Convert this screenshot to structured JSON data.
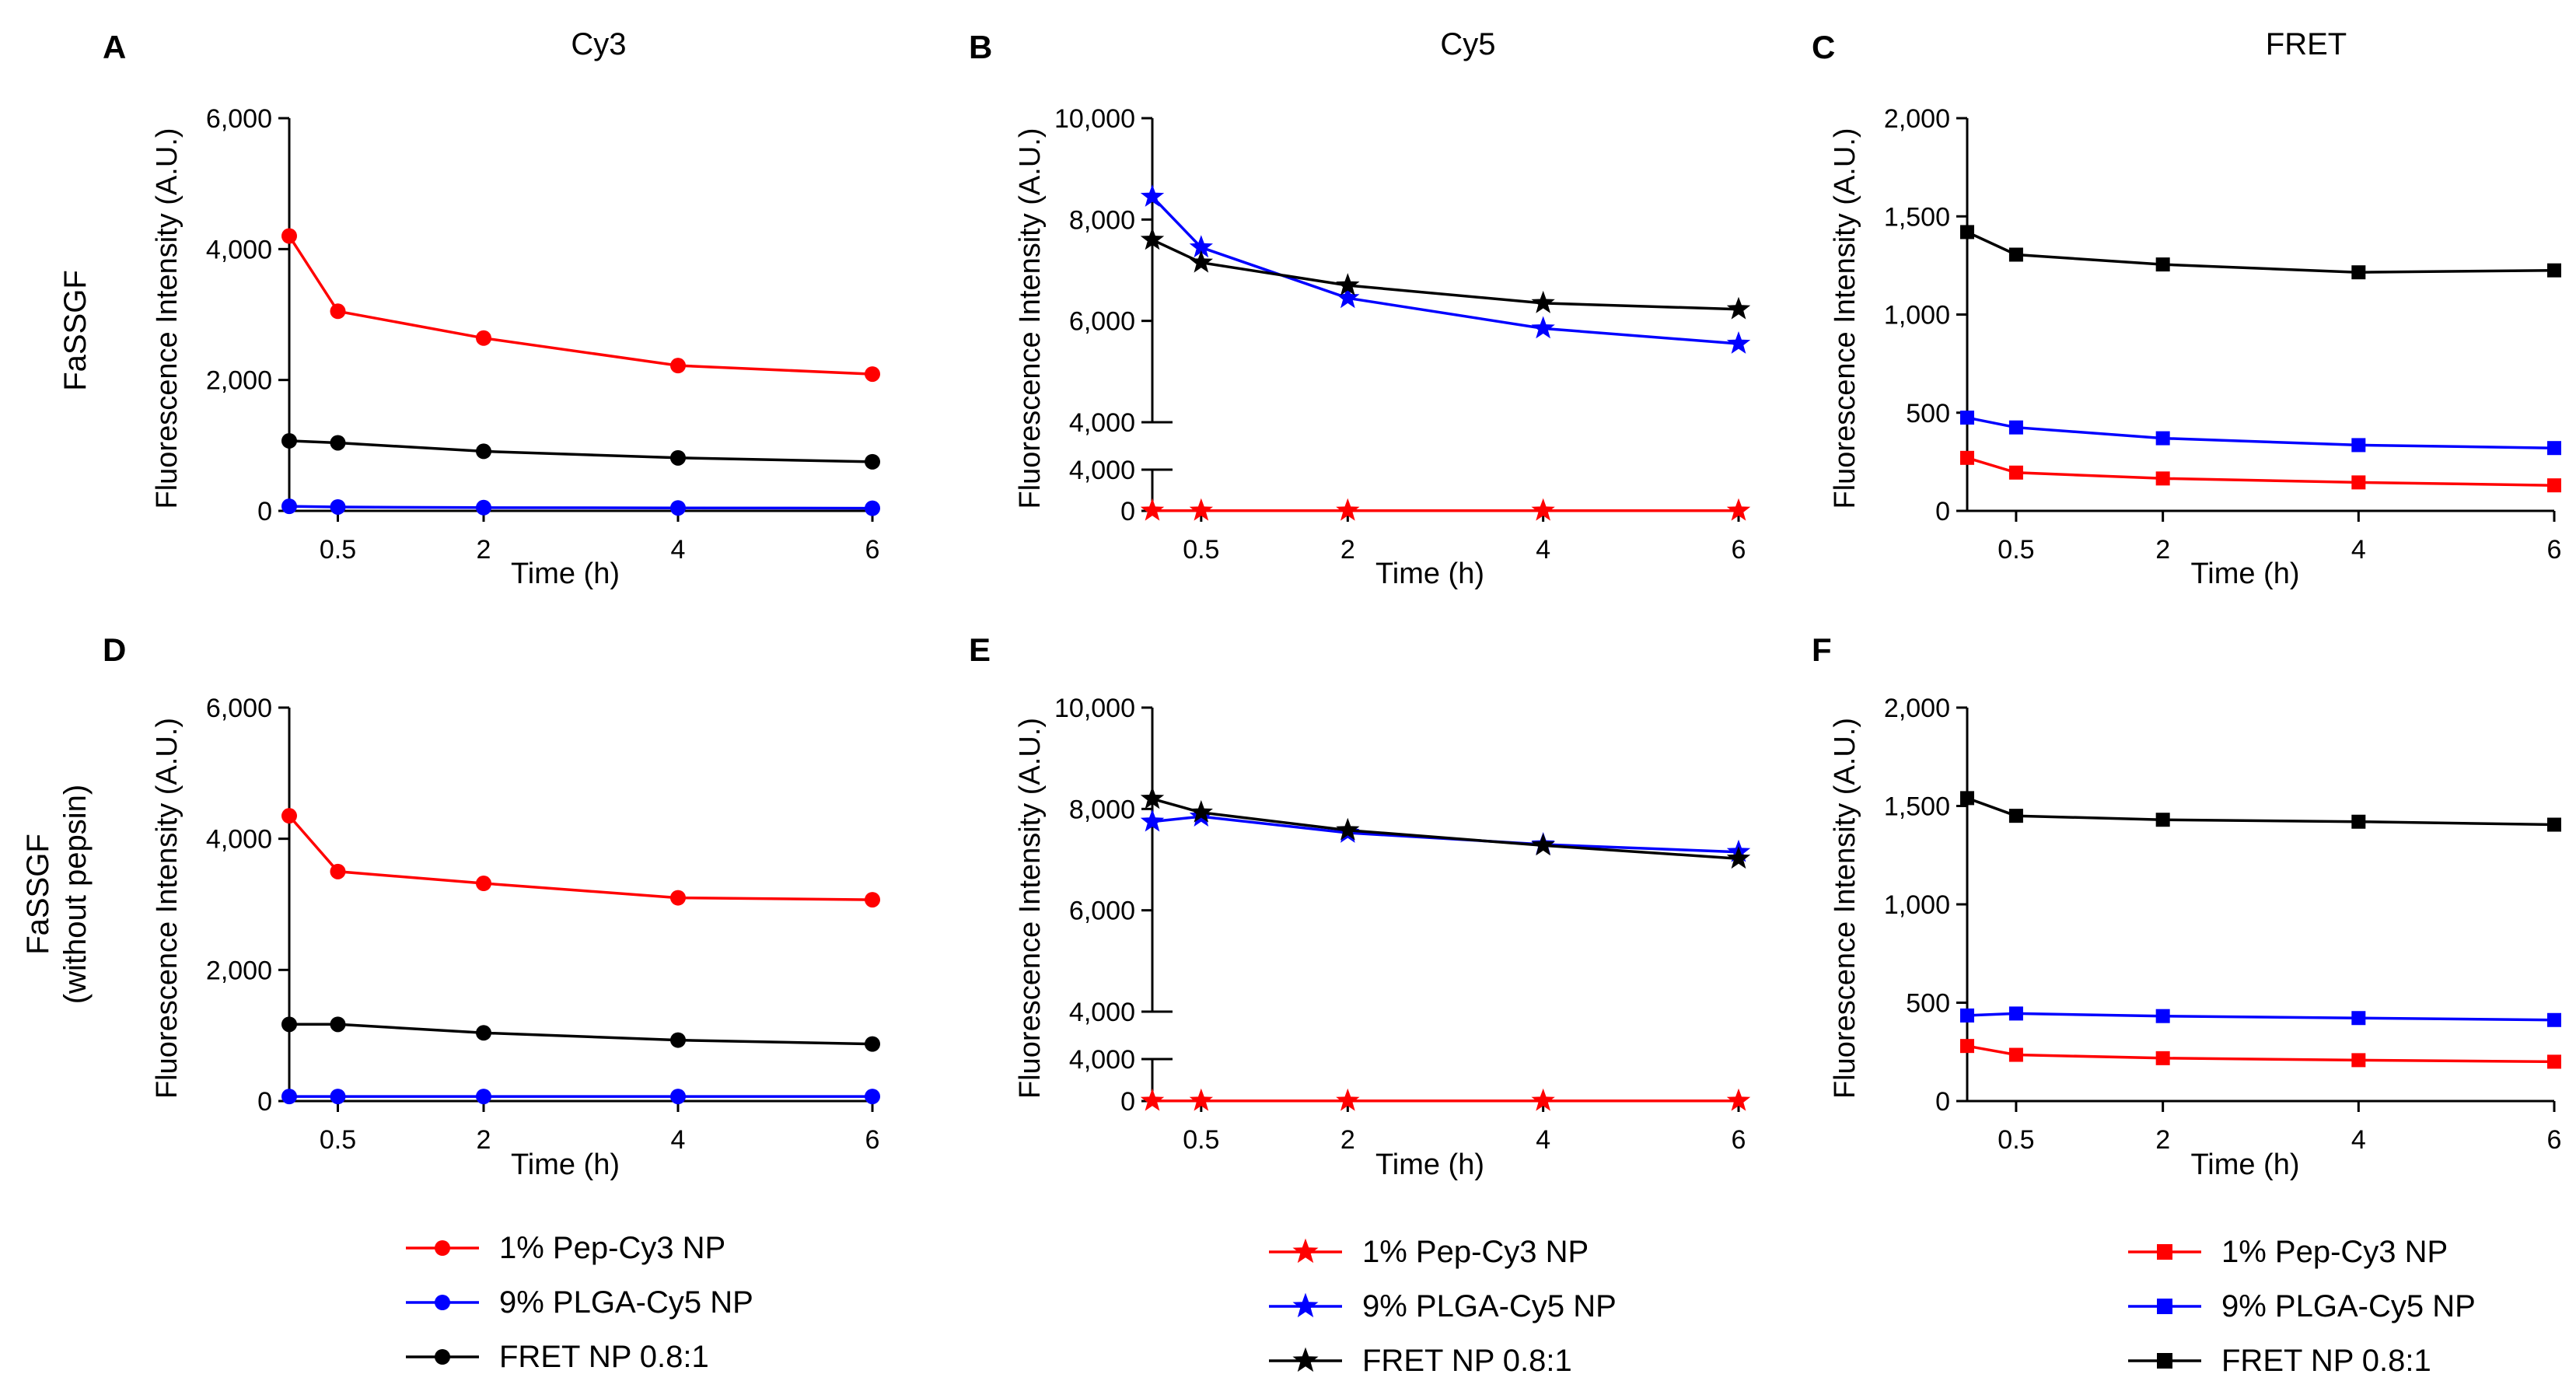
{
  "figure": {
    "row_labels": [
      {
        "lines": [
          "FaSSGF"
        ]
      },
      {
        "lines": [
          "FaSSGF",
          "(without pepsin)"
        ]
      }
    ],
    "column_titles": [
      "Cy3",
      "Cy5",
      "FRET"
    ]
  },
  "colors": {
    "red": "#ff0000",
    "blue": "#0000ff",
    "black": "#000000"
  },
  "legends": [
    {
      "marker": "circle",
      "items": [
        {
          "label": "1% Pep-Cy3 NP",
          "color": "#ff0000"
        },
        {
          "label": "9% PLGA-Cy5 NP",
          "color": "#0000ff"
        },
        {
          "label": "FRET NP 0.8:1",
          "color": "#000000"
        }
      ]
    },
    {
      "marker": "star",
      "items": [
        {
          "label": "1% Pep-Cy3 NP",
          "color": "#ff0000"
        },
        {
          "label": "9% PLGA-Cy5 NP",
          "color": "#0000ff"
        },
        {
          "label": "FRET NP 0.8:1",
          "color": "#000000"
        }
      ]
    },
    {
      "marker": "square",
      "items": [
        {
          "label": "1% Pep-Cy3 NP",
          "color": "#ff0000"
        },
        {
          "label": "9% PLGA-Cy5 NP",
          "color": "#0000ff"
        },
        {
          "label": "FRET NP 0.8:1",
          "color": "#000000"
        }
      ]
    }
  ],
  "chart_data": [
    {
      "panel": "A",
      "type": "line",
      "xlabel": "Time (h)",
      "ylabel": "Fluorescence Intensity (A.U.)",
      "x": [
        0,
        0.5,
        2,
        4,
        6
      ],
      "x_tick_values": [
        0.5,
        2,
        4,
        6
      ],
      "x_tick_labels": [
        "0.5",
        "2",
        "4",
        "6"
      ],
      "xlim": [
        0,
        6
      ],
      "ylim": [
        0,
        6000
      ],
      "y_tick_values": [
        0,
        2000,
        4000,
        6000
      ],
      "y_tick_labels": [
        "0",
        "2,000",
        "4,000",
        "6,000"
      ],
      "marker": "circle",
      "series": [
        {
          "name": "1% Pep-Cy3 NP",
          "color": "#ff0000",
          "values": [
            4200,
            3050,
            2640,
            2220,
            2090
          ]
        },
        {
          "name": "9% PLGA-Cy5 NP",
          "color": "#0000ff",
          "values": [
            70,
            60,
            50,
            45,
            40
          ]
        },
        {
          "name": "FRET NP 0.8:1",
          "color": "#000000",
          "values": [
            1070,
            1040,
            910,
            810,
            750
          ]
        }
      ]
    },
    {
      "panel": "B",
      "type": "line",
      "xlabel": "Time (h)",
      "ylabel": "Fluorescence Intensity (A.U.)",
      "x": [
        0,
        0.5,
        2,
        4,
        6
      ],
      "x_tick_values": [
        0.5,
        2,
        4,
        6
      ],
      "x_tick_labels": [
        "0.5",
        "2",
        "4",
        "6"
      ],
      "xlim": [
        0,
        6
      ],
      "y_break": true,
      "upper_ylim": [
        4000,
        10000
      ],
      "upper_tick_values": [
        4000,
        6000,
        8000,
        10000
      ],
      "upper_tick_labels": [
        "4,000",
        "6,000",
        "8,000",
        "10,000"
      ],
      "lower_ylim": [
        0,
        4000
      ],
      "lower_tick_values": [
        0,
        4000
      ],
      "lower_tick_labels": [
        "0",
        "4,000"
      ],
      "marker": "star",
      "series": [
        {
          "name": "1% Pep-Cy3 NP",
          "color": "#ff0000",
          "values": [
            20,
            20,
            20,
            20,
            20
          ]
        },
        {
          "name": "9% PLGA-Cy5 NP",
          "color": "#0000ff",
          "values": [
            8450,
            7450,
            6450,
            5850,
            5550
          ]
        },
        {
          "name": "FRET NP 0.8:1",
          "color": "#000000",
          "values": [
            7600,
            7150,
            6700,
            6350,
            6230
          ]
        }
      ]
    },
    {
      "panel": "C",
      "type": "line",
      "xlabel": "Time (h)",
      "ylabel": "Fluorescence Intensity (A.U.)",
      "x": [
        0,
        0.5,
        2,
        4,
        6
      ],
      "x_tick_values": [
        0.5,
        2,
        4,
        6
      ],
      "x_tick_labels": [
        "0.5",
        "2",
        "4",
        "6"
      ],
      "xlim": [
        0,
        6
      ],
      "ylim": [
        0,
        2000
      ],
      "y_tick_values": [
        0,
        500,
        1000,
        1500,
        2000
      ],
      "y_tick_labels": [
        "0",
        "500",
        "1,000",
        "1,500",
        "2,000"
      ],
      "marker": "square",
      "series": [
        {
          "name": "1% Pep-Cy3 NP",
          "color": "#ff0000",
          "values": [
            270,
            195,
            165,
            145,
            130
          ]
        },
        {
          "name": "9% PLGA-Cy5 NP",
          "color": "#0000ff",
          "values": [
            475,
            425,
            370,
            335,
            320
          ]
        },
        {
          "name": "FRET NP 0.8:1",
          "color": "#000000",
          "values": [
            1420,
            1305,
            1255,
            1215,
            1225
          ]
        }
      ]
    },
    {
      "panel": "D",
      "type": "line",
      "xlabel": "Time (h)",
      "ylabel": "Fluorescence Intensity (A.U.)",
      "x": [
        0,
        0.5,
        2,
        4,
        6
      ],
      "x_tick_values": [
        0.5,
        2,
        4,
        6
      ],
      "x_tick_labels": [
        "0.5",
        "2",
        "4",
        "6"
      ],
      "xlim": [
        0,
        6
      ],
      "ylim": [
        0,
        6000
      ],
      "y_tick_values": [
        0,
        2000,
        4000,
        6000
      ],
      "y_tick_labels": [
        "0",
        "2,000",
        "4,000",
        "6,000"
      ],
      "marker": "circle",
      "series": [
        {
          "name": "1% Pep-Cy3 NP",
          "color": "#ff0000",
          "values": [
            4350,
            3500,
            3320,
            3100,
            3070
          ]
        },
        {
          "name": "9% PLGA-Cy5 NP",
          "color": "#0000ff",
          "values": [
            70,
            70,
            70,
            70,
            70
          ]
        },
        {
          "name": "FRET NP 0.8:1",
          "color": "#000000",
          "values": [
            1170,
            1170,
            1040,
            930,
            870
          ]
        }
      ]
    },
    {
      "panel": "E",
      "type": "line",
      "xlabel": "Time (h)",
      "ylabel": "Fluorescence Intensity (A.U.)",
      "x": [
        0,
        0.5,
        2,
        4,
        6
      ],
      "x_tick_values": [
        0.5,
        2,
        4,
        6
      ],
      "x_tick_labels": [
        "0.5",
        "2",
        "4",
        "6"
      ],
      "xlim": [
        0,
        6
      ],
      "y_break": true,
      "upper_ylim": [
        4000,
        10000
      ],
      "upper_tick_values": [
        4000,
        6000,
        8000,
        10000
      ],
      "upper_tick_labels": [
        "4,000",
        "6,000",
        "8,000",
        "10,000"
      ],
      "lower_ylim": [
        0,
        4000
      ],
      "lower_tick_values": [
        0,
        4000
      ],
      "lower_tick_labels": [
        "0",
        "4,000"
      ],
      "marker": "star",
      "series": [
        {
          "name": "1% Pep-Cy3 NP",
          "color": "#ff0000",
          "values": [
            20,
            20,
            20,
            20,
            20
          ]
        },
        {
          "name": "9% PLGA-Cy5 NP",
          "color": "#0000ff",
          "values": [
            7750,
            7850,
            7530,
            7300,
            7150
          ]
        },
        {
          "name": "FRET NP 0.8:1",
          "color": "#000000",
          "values": [
            8200,
            7930,
            7580,
            7280,
            7020
          ]
        }
      ]
    },
    {
      "panel": "F",
      "type": "line",
      "xlabel": "Time (h)",
      "ylabel": "Fluorescence Intensity (A.U.)",
      "x": [
        0,
        0.5,
        2,
        4,
        6
      ],
      "x_tick_values": [
        0.5,
        2,
        4,
        6
      ],
      "x_tick_labels": [
        "0.5",
        "2",
        "4",
        "6"
      ],
      "xlim": [
        0,
        6
      ],
      "ylim": [
        0,
        2000
      ],
      "y_tick_values": [
        0,
        500,
        1000,
        1500,
        2000
      ],
      "y_tick_labels": [
        "0",
        "500",
        "1,000",
        "1,500",
        "2,000"
      ],
      "marker": "square",
      "series": [
        {
          "name": "1% Pep-Cy3 NP",
          "color": "#ff0000",
          "values": [
            280,
            235,
            218,
            208,
            200
          ]
        },
        {
          "name": "9% PLGA-Cy5 NP",
          "color": "#0000ff",
          "values": [
            435,
            445,
            432,
            422,
            412
          ]
        },
        {
          "name": "FRET NP 0.8:1",
          "color": "#000000",
          "values": [
            1540,
            1450,
            1430,
            1420,
            1405
          ]
        }
      ]
    }
  ]
}
